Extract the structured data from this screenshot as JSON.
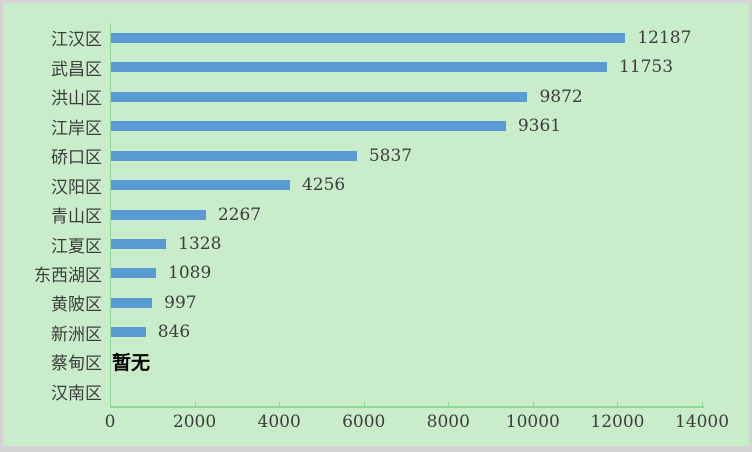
{
  "chart_data": {
    "type": "bar",
    "orientation": "horizontal",
    "title": "",
    "xlabel": "",
    "ylabel": "",
    "categories": [
      "江汉区",
      "武昌区",
      "洪山区",
      "江岸区",
      "硚口区",
      "汉阳区",
      "青山区",
      "江夏区",
      "东西湖区",
      "黄陂区",
      "新洲区",
      "蔡甸区",
      "汉南区"
    ],
    "values": [
      12187,
      11753,
      9872,
      9361,
      5837,
      4256,
      2267,
      1328,
      1089,
      997,
      846,
      null,
      null
    ],
    "data_labels": [
      "12187",
      "11753",
      "9872",
      "9361",
      "5837",
      "4256",
      "2267",
      "1328",
      "1089",
      "997",
      "846",
      "暂无",
      ""
    ],
    "no_data_label": "暂无",
    "xlim": [
      0,
      14000
    ],
    "x_ticks": [
      "0",
      "2000",
      "4000",
      "6000",
      "8000",
      "10000",
      "12000",
      "14000"
    ],
    "grid": false,
    "legend": false
  },
  "colors": {
    "background": "#c9edcb",
    "frame_border": "#d5d3d6",
    "bar": "#5b9bd5",
    "axis": "#8fd893",
    "label_text": "#3d3d3d",
    "no_data_text": "#000000"
  }
}
